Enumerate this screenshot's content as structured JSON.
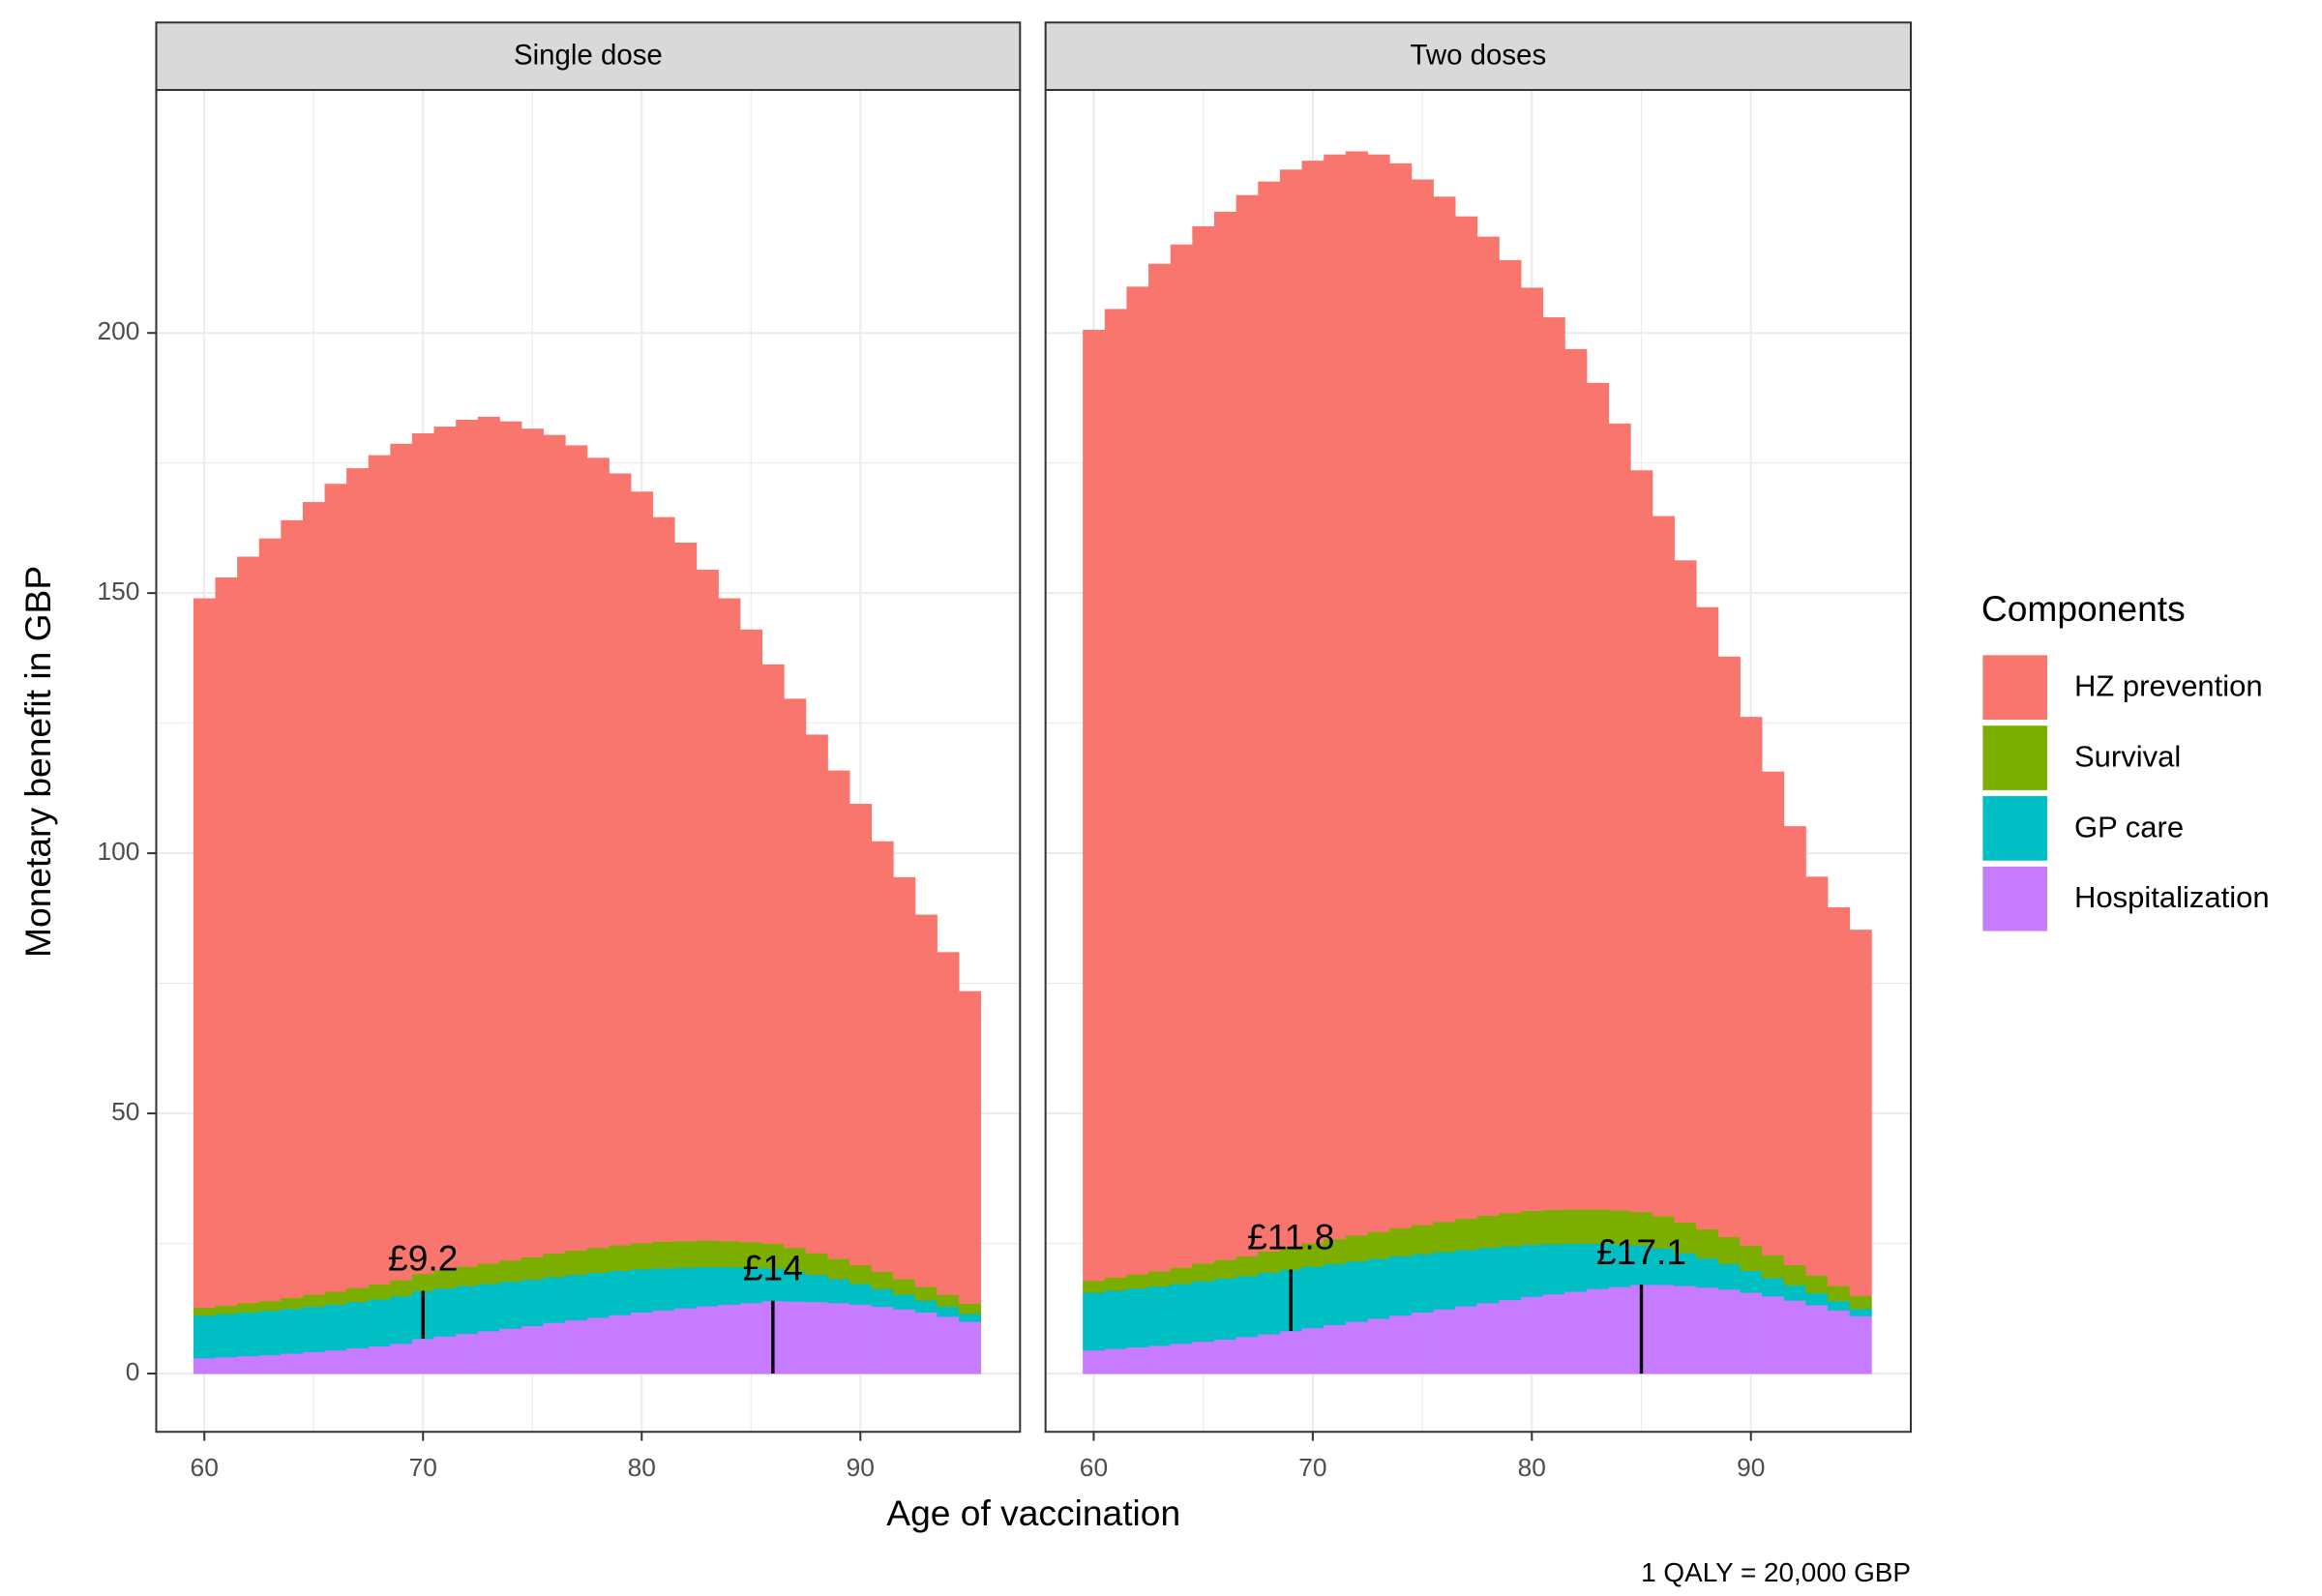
{
  "chart_data": {
    "type": "bar",
    "stacked": true,
    "x_label": "Age of vaccination",
    "y_label": "Monetary benefit in GBP",
    "caption": "1 QALY = 20,000 GBP",
    "legend_title": "Components",
    "legend_position": "right",
    "grid": true,
    "x": [
      60,
      61,
      62,
      63,
      64,
      65,
      66,
      67,
      68,
      69,
      70,
      71,
      72,
      73,
      74,
      75,
      76,
      77,
      78,
      79,
      80,
      81,
      82,
      83,
      84,
      85,
      86,
      87,
      88,
      89,
      90,
      91,
      92,
      93,
      94,
      95
    ],
    "xlim": [
      57.8,
      97.3
    ],
    "xticks": [
      60,
      70,
      80,
      90
    ],
    "ylim": [
      -11.2,
      246.7
    ],
    "yticks": [
      0,
      50,
      100,
      150,
      200
    ],
    "series": [
      {
        "name": "Hospitalization",
        "color": "#c77cff"
      },
      {
        "name": "GP care",
        "color": "#00bfc4"
      },
      {
        "name": "Survival",
        "color": "#7cae00"
      },
      {
        "name": "HZ prevention",
        "color": "#f8766d"
      }
    ],
    "facets": [
      {
        "title": "Single dose",
        "values": [
          [
            3.0,
            3.2,
            3.4,
            3.6,
            3.9,
            4.2,
            4.5,
            4.9,
            5.3,
            5.8,
            6.7,
            7.2,
            7.7,
            8.2,
            8.7,
            9.2,
            9.8,
            10.3,
            10.8,
            11.3,
            11.8,
            12.2,
            12.6,
            13.0,
            13.3,
            13.6,
            14.0,
            13.9,
            13.8,
            13.6,
            13.3,
            12.9,
            12.4,
            11.8,
            11.0,
            10.0
          ],
          [
            8.2,
            8.3,
            8.4,
            8.5,
            8.6,
            8.7,
            8.8,
            8.9,
            9.0,
            9.1,
            9.2,
            9.2,
            9.2,
            9.1,
            9.0,
            8.9,
            8.8,
            8.7,
            8.6,
            8.5,
            8.3,
            8.1,
            7.8,
            7.5,
            7.2,
            6.8,
            6.3,
            5.8,
            5.2,
            4.6,
            4.0,
            3.4,
            2.8,
            2.3,
            1.9,
            1.5
          ],
          [
            1.5,
            1.6,
            1.8,
            1.9,
            2.1,
            2.3,
            2.5,
            2.7,
            2.9,
            3.1,
            3.3,
            3.5,
            3.7,
            3.9,
            4.1,
            4.3,
            4.5,
            4.7,
            4.8,
            4.9,
            5.0,
            5.1,
            5.1,
            5.1,
            5.0,
            4.9,
            4.7,
            4.5,
            4.2,
            3.9,
            3.6,
            3.3,
            3.0,
            2.6,
            2.3,
            2.0
          ],
          [
            136.3,
            139.9,
            143.4,
            146.5,
            149.4,
            152.3,
            155.2,
            157.5,
            159.3,
            160.7,
            161.5,
            162.1,
            162.7,
            162.7,
            161.2,
            159.2,
            157.3,
            154.7,
            151.8,
            148.3,
            144.4,
            139.2,
            134.2,
            128.9,
            123.5,
            117.7,
            111.3,
            105.5,
            99.6,
            93.8,
            88.6,
            82.7,
            77.2,
            71.5,
            65.8,
            60.0
          ]
        ],
        "annotations": [
          {
            "x": 70,
            "label": "£9.2",
            "series": "GP care"
          },
          {
            "x": 86,
            "label": "£14",
            "series": "Hospitalization"
          }
        ]
      },
      {
        "title": "Two doses",
        "values": [
          [
            4.5,
            4.8,
            5.1,
            5.4,
            5.8,
            6.2,
            6.6,
            7.1,
            7.6,
            8.2,
            8.8,
            9.4,
            10.0,
            10.6,
            11.2,
            11.8,
            12.4,
            13.0,
            13.6,
            14.2,
            14.8,
            15.3,
            15.8,
            16.3,
            16.7,
            17.1,
            17.1,
            16.9,
            16.6,
            16.2,
            15.6,
            14.9,
            14.1,
            13.2,
            12.2,
            11.1
          ],
          [
            11.1,
            11.2,
            11.3,
            11.4,
            11.5,
            11.6,
            11.7,
            11.7,
            11.8,
            11.8,
            11.8,
            11.7,
            11.6,
            11.5,
            11.4,
            11.2,
            11.0,
            10.8,
            10.6,
            10.3,
            10.0,
            9.6,
            9.2,
            8.7,
            8.2,
            7.6,
            7.0,
            6.3,
            5.6,
            4.9,
            4.2,
            3.5,
            2.9,
            2.3,
            1.8,
            1.4
          ],
          [
            2.3,
            2.5,
            2.7,
            2.9,
            3.1,
            3.4,
            3.6,
            3.8,
            4.1,
            4.3,
            4.5,
            4.8,
            5.0,
            5.2,
            5.4,
            5.6,
            5.8,
            6.0,
            6.2,
            6.4,
            6.5,
            6.6,
            6.6,
            6.6,
            6.5,
            6.4,
            6.2,
            5.9,
            5.6,
            5.2,
            4.8,
            4.4,
            3.9,
            3.4,
            2.9,
            2.5
          ],
          [
            182.7,
            186.1,
            189.8,
            193.6,
            196.6,
            199.3,
            201.4,
            203.9,
            205.6,
            207.1,
            208.0,
            208.4,
            208.3,
            207.0,
            204.6,
            200.9,
            197.0,
            192.6,
            188.1,
            183.1,
            177.4,
            171.5,
            165.3,
            158.8,
            151.2,
            142.5,
            134.5,
            127.2,
            119.5,
            111.5,
            101.6,
            92.9,
            84.3,
            76.6,
            72.7,
            70.3
          ]
        ],
        "annotations": [
          {
            "x": 69,
            "label": "£11.8",
            "series": "GP care"
          },
          {
            "x": 85,
            "label": "£17.1",
            "series": "Hospitalization"
          }
        ]
      }
    ]
  }
}
